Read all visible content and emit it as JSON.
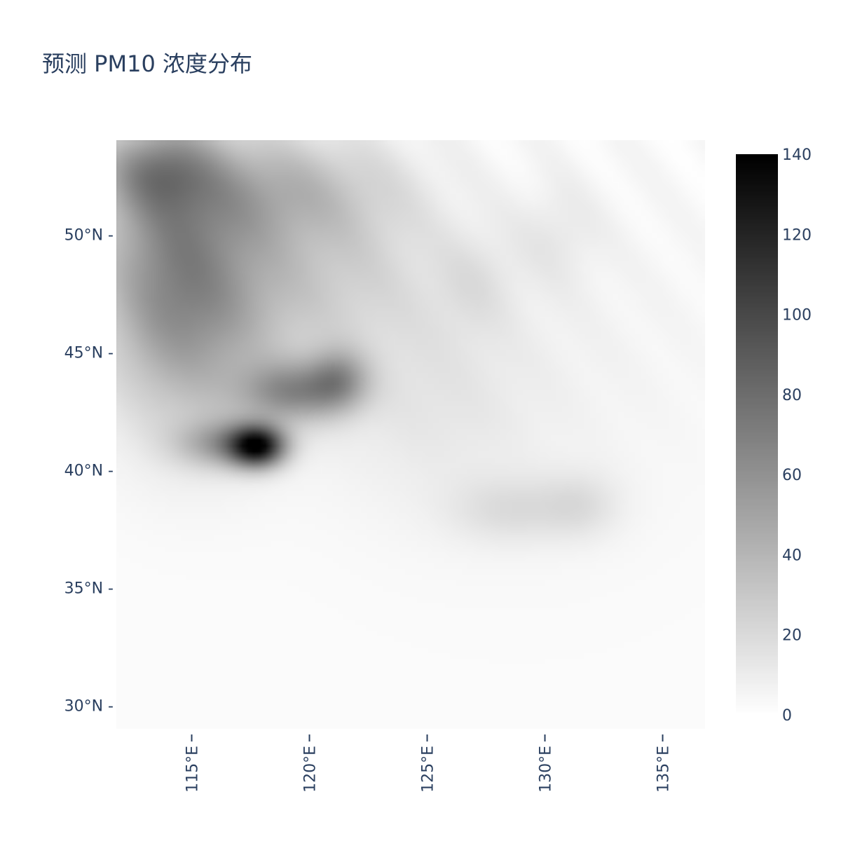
{
  "chart_data": {
    "type": "heatmap",
    "title": "预测 PM10 浓度分布",
    "xlabel": "",
    "ylabel": "",
    "xlim": [
      111.8,
      136.8
    ],
    "ylim": [
      29.0,
      54.0
    ],
    "xtick_values": [
      115,
      120,
      125,
      130,
      135
    ],
    "xtick_labels": [
      "115°E",
      "120°E",
      "125°E",
      "130°E",
      "135°E"
    ],
    "ytick_values": [
      30,
      35,
      40,
      45,
      50
    ],
    "ytick_labels": [
      "30°N -",
      "35°N -",
      "40°N -",
      "45°N -",
      "50°N -"
    ],
    "colorbar": {
      "min": 0,
      "max": 140,
      "tick_values": [
        0,
        20,
        40,
        60,
        80,
        100,
        120,
        140
      ],
      "tick_labels": [
        "0",
        "20",
        "40",
        "60",
        "80",
        "100",
        "120",
        "140"
      ],
      "colorscale": [
        "#ffffff",
        "#000000"
      ]
    },
    "features": [
      {
        "lon": 117.8,
        "lat": 41.0,
        "sx": 0.8,
        "sy": 0.6,
        "value": 110
      },
      {
        "lon": 116.5,
        "lat": 41.1,
        "sx": 1.4,
        "sy": 0.7,
        "value": 45
      },
      {
        "lon": 119.2,
        "lat": 43.3,
        "sx": 1.5,
        "sy": 0.9,
        "value": 50
      },
      {
        "lon": 121.2,
        "lat": 43.8,
        "sx": 0.9,
        "sy": 0.9,
        "value": 45
      },
      {
        "lon": 115.0,
        "lat": 46.0,
        "sx": 2.5,
        "sy": 3.5,
        "value": 32
      },
      {
        "lon": 114.0,
        "lat": 49.5,
        "sx": 2.2,
        "sy": 3.5,
        "value": 38
      },
      {
        "lon": 118.5,
        "lat": 48.5,
        "sx": 3.0,
        "sy": 3.0,
        "value": 20
      },
      {
        "lon": 118.0,
        "lat": 52.0,
        "sx": 3.5,
        "sy": 1.6,
        "value": 28
      },
      {
        "lon": 113.5,
        "lat": 52.8,
        "sx": 1.6,
        "sy": 1.2,
        "value": 38
      },
      {
        "lon": 122.5,
        "lat": 49.0,
        "sx": 2.5,
        "sy": 3.0,
        "value": 10
      },
      {
        "lon": 128.5,
        "lat": 38.3,
        "sx": 1.8,
        "sy": 1.0,
        "value": 14
      },
      {
        "lon": 131.5,
        "lat": 38.5,
        "sx": 1.2,
        "sy": 1.0,
        "value": 13
      },
      {
        "lon": 127.0,
        "lat": 48.0,
        "sx": 1.2,
        "sy": 1.5,
        "value": 9
      },
      {
        "lon": 130.5,
        "lat": 50.0,
        "sx": 1.2,
        "sy": 1.5,
        "value": 8
      },
      {
        "lon": 125.0,
        "lat": 43.0,
        "sx": 3.0,
        "sy": 3.0,
        "value": 8
      },
      {
        "lon": 129.0,
        "lat": 45.0,
        "sx": 6.0,
        "sy": 6.0,
        "value": 5
      }
    ]
  }
}
